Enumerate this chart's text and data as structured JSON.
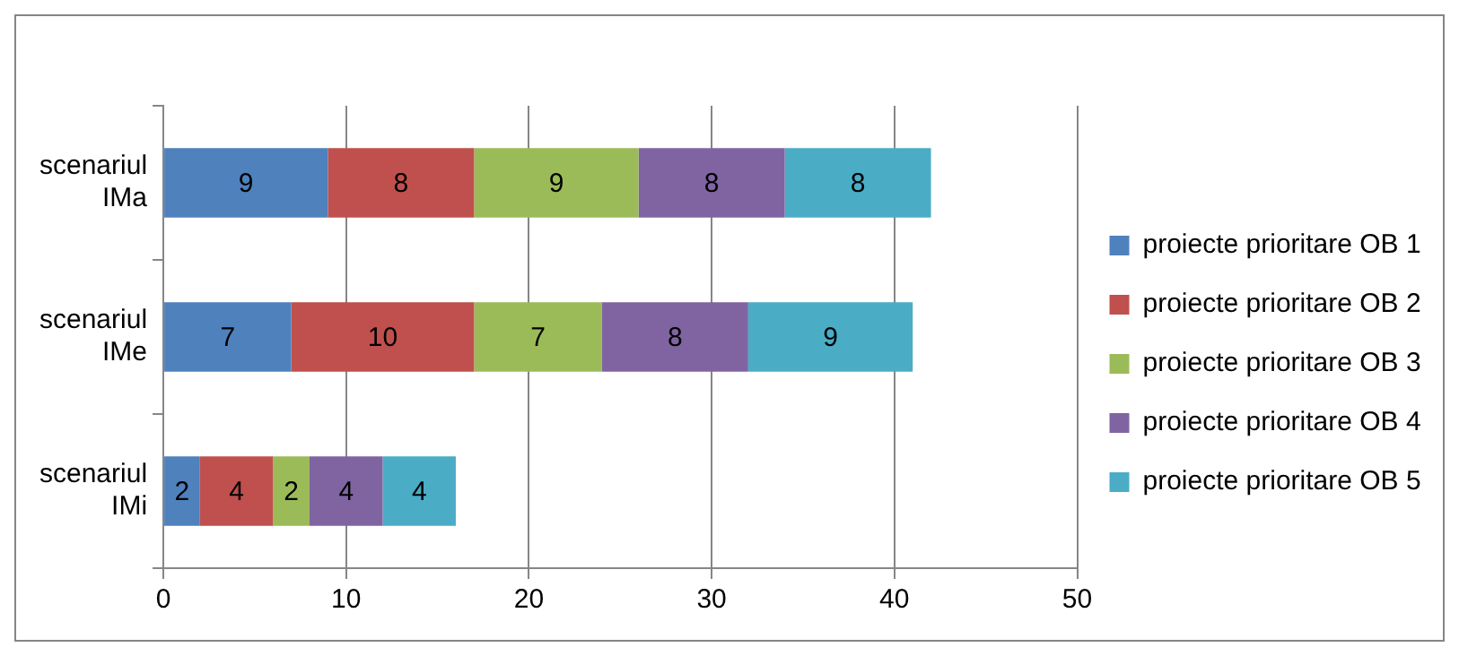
{
  "chart_data": {
    "type": "bar",
    "orientation": "horizontal",
    "stacked": true,
    "categories": [
      "scenariul IMa",
      "scenariul IMe",
      "scenariul IMi"
    ],
    "series": [
      {
        "name": "proiecte prioritare OB 1",
        "color": "#4f81bd",
        "values": [
          9,
          7,
          2
        ]
      },
      {
        "name": "proiecte prioritare OB 2",
        "color": "#c0504d",
        "values": [
          8,
          10,
          4
        ]
      },
      {
        "name": "proiecte prioritare OB 3",
        "color": "#9bbb59",
        "values": [
          9,
          7,
          2
        ]
      },
      {
        "name": "proiecte prioritare OB 4",
        "color": "#8064a2",
        "values": [
          8,
          8,
          4
        ]
      },
      {
        "name": "proiecte prioritare OB 5",
        "color": "#4bacc6",
        "values": [
          8,
          9,
          4
        ]
      }
    ],
    "xlim": [
      0,
      50
    ],
    "xticks": [
      0,
      10,
      20,
      30,
      40,
      50
    ],
    "grid": "x",
    "legend": "right",
    "data_labels": true
  }
}
